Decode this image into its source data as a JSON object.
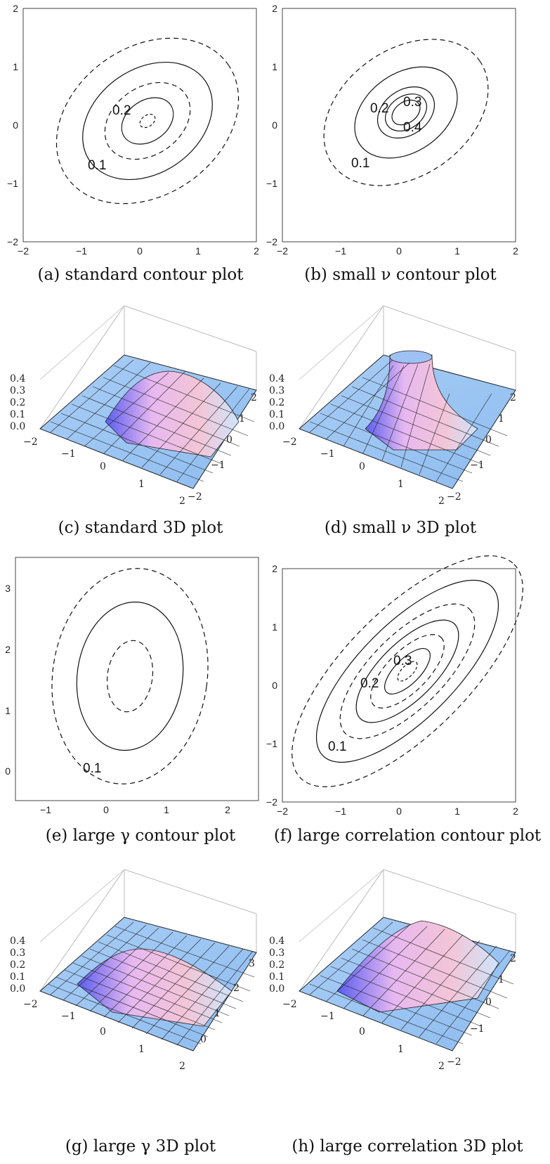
{
  "captions": {
    "a": "(a) standard contour plot",
    "b": "(b) small ν contour plot",
    "c": "(c) standard 3D plot",
    "d": "(d) small ν 3D plot",
    "e": "(e) large γ contour plot",
    "f": "(f) large correlation contour plot",
    "g": "(g) large γ 3D plot",
    "h": "(h) large correlation 3D plot"
  },
  "contour_ticks": [
    "−2",
    "−1",
    "0",
    "1",
    "2"
  ],
  "e_ticks": {
    "x": [
      "−1",
      "0",
      "1",
      "2"
    ],
    "y": [
      "0",
      "1",
      "2",
      "3"
    ]
  },
  "contour_labels": {
    "a": [
      "0.2",
      "0.1"
    ],
    "b": [
      "0.2",
      "0.3",
      "0.4",
      "0.1"
    ],
    "e": [
      "0.1"
    ],
    "f": [
      "0.3",
      "0.2",
      "0.1"
    ]
  },
  "z_ticks": [
    "0.4",
    "0.3",
    "0.2",
    "0.1",
    "0.0"
  ],
  "surface_ticks_x": [
    "−2",
    "−1",
    "0",
    "1",
    "2"
  ],
  "surface_ticks_y": [
    "−2",
    "−1",
    "0",
    "1",
    "2"
  ],
  "surface_ticks_y_gamma": [
    "0",
    "1",
    "2",
    "3"
  ]
}
